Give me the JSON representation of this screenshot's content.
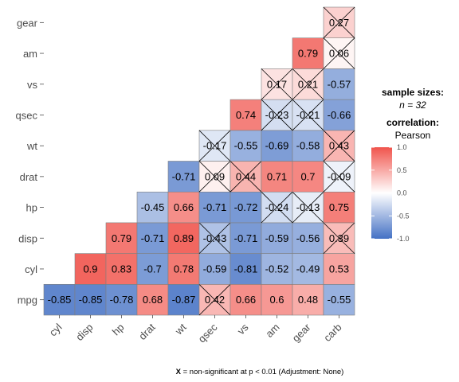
{
  "chart_data": {
    "type": "heatmap",
    "subtype": "correlation-matrix-lower-triangle",
    "variables": [
      "mpg",
      "cyl",
      "disp",
      "hp",
      "drat",
      "wt",
      "qsec",
      "vs",
      "am",
      "gear",
      "carb"
    ],
    "cells": [
      {
        "row": "cyl",
        "col": "mpg",
        "value": -0.85,
        "significant": true
      },
      {
        "row": "disp",
        "col": "mpg",
        "value": -0.85,
        "significant": true
      },
      {
        "row": "hp",
        "col": "mpg",
        "value": -0.78,
        "significant": true
      },
      {
        "row": "drat",
        "col": "mpg",
        "value": 0.68,
        "significant": true
      },
      {
        "row": "wt",
        "col": "mpg",
        "value": -0.87,
        "significant": true
      },
      {
        "row": "qsec",
        "col": "mpg",
        "value": 0.42,
        "significant": false
      },
      {
        "row": "vs",
        "col": "mpg",
        "value": 0.66,
        "significant": true
      },
      {
        "row": "am",
        "col": "mpg",
        "value": 0.6,
        "significant": true
      },
      {
        "row": "gear",
        "col": "mpg",
        "value": 0.48,
        "significant": true
      },
      {
        "row": "carb",
        "col": "mpg",
        "value": -0.55,
        "significant": true
      },
      {
        "row": "disp",
        "col": "cyl",
        "value": 0.9,
        "significant": true
      },
      {
        "row": "hp",
        "col": "cyl",
        "value": 0.83,
        "significant": true
      },
      {
        "row": "drat",
        "col": "cyl",
        "value": -0.7,
        "significant": true
      },
      {
        "row": "wt",
        "col": "cyl",
        "value": 0.78,
        "significant": true
      },
      {
        "row": "qsec",
        "col": "cyl",
        "value": -0.59,
        "significant": true
      },
      {
        "row": "vs",
        "col": "cyl",
        "value": -0.81,
        "significant": true
      },
      {
        "row": "am",
        "col": "cyl",
        "value": -0.52,
        "significant": true
      },
      {
        "row": "gear",
        "col": "cyl",
        "value": -0.49,
        "significant": true
      },
      {
        "row": "carb",
        "col": "cyl",
        "value": 0.53,
        "significant": true
      },
      {
        "row": "hp",
        "col": "disp",
        "value": 0.79,
        "significant": true
      },
      {
        "row": "drat",
        "col": "disp",
        "value": -0.71,
        "significant": true
      },
      {
        "row": "wt",
        "col": "disp",
        "value": 0.89,
        "significant": true
      },
      {
        "row": "qsec",
        "col": "disp",
        "value": -0.43,
        "significant": false
      },
      {
        "row": "vs",
        "col": "disp",
        "value": -0.71,
        "significant": true
      },
      {
        "row": "am",
        "col": "disp",
        "value": -0.59,
        "significant": true
      },
      {
        "row": "gear",
        "col": "disp",
        "value": -0.56,
        "significant": true
      },
      {
        "row": "carb",
        "col": "disp",
        "value": 0.39,
        "significant": false
      },
      {
        "row": "drat",
        "col": "hp",
        "value": -0.45,
        "significant": true
      },
      {
        "row": "wt",
        "col": "hp",
        "value": 0.66,
        "significant": true
      },
      {
        "row": "qsec",
        "col": "hp",
        "value": -0.71,
        "significant": true
      },
      {
        "row": "vs",
        "col": "hp",
        "value": -0.72,
        "significant": true
      },
      {
        "row": "am",
        "col": "hp",
        "value": -0.24,
        "significant": false
      },
      {
        "row": "gear",
        "col": "hp",
        "value": -0.13,
        "significant": false
      },
      {
        "row": "carb",
        "col": "hp",
        "value": 0.75,
        "significant": true
      },
      {
        "row": "wt",
        "col": "drat",
        "value": -0.71,
        "significant": true
      },
      {
        "row": "qsec",
        "col": "drat",
        "value": 0.09,
        "significant": false
      },
      {
        "row": "vs",
        "col": "drat",
        "value": 0.44,
        "significant": false
      },
      {
        "row": "am",
        "col": "drat",
        "value": 0.71,
        "significant": true
      },
      {
        "row": "gear",
        "col": "drat",
        "value": 0.7,
        "significant": true
      },
      {
        "row": "carb",
        "col": "drat",
        "value": -0.09,
        "significant": false
      },
      {
        "row": "qsec",
        "col": "wt",
        "value": -0.17,
        "significant": false
      },
      {
        "row": "vs",
        "col": "wt",
        "value": -0.55,
        "significant": true
      },
      {
        "row": "am",
        "col": "wt",
        "value": -0.69,
        "significant": true
      },
      {
        "row": "gear",
        "col": "wt",
        "value": -0.58,
        "significant": true
      },
      {
        "row": "carb",
        "col": "wt",
        "value": 0.43,
        "significant": false
      },
      {
        "row": "vs",
        "col": "qsec",
        "value": 0.74,
        "significant": true
      },
      {
        "row": "am",
        "col": "qsec",
        "value": -0.23,
        "significant": false
      },
      {
        "row": "gear",
        "col": "qsec",
        "value": -0.21,
        "significant": false
      },
      {
        "row": "carb",
        "col": "qsec",
        "value": -0.66,
        "significant": true
      },
      {
        "row": "am",
        "col": "vs",
        "value": 0.17,
        "significant": false
      },
      {
        "row": "gear",
        "col": "vs",
        "value": 0.21,
        "significant": false
      },
      {
        "row": "carb",
        "col": "vs",
        "value": -0.57,
        "significant": true
      },
      {
        "row": "gear",
        "col": "am",
        "value": 0.79,
        "significant": true
      },
      {
        "row": "carb",
        "col": "am",
        "value": 0.06,
        "significant": false
      },
      {
        "row": "carb",
        "col": "gear",
        "value": 0.27,
        "significant": false
      }
    ],
    "color_scale": {
      "low": "#4471c4",
      "mid": "#ffffff",
      "high": "#f0544c",
      "limits": [
        -1,
        1
      ]
    },
    "legend": {
      "title": "sample sizes:",
      "n_label": "n = 32",
      "corr_title": "correlation:",
      "method": "Pearson",
      "ticks": [
        "1.0",
        "0.5",
        "0.0",
        "-0.5",
        "-1.0"
      ],
      "tick_values": [
        1.0,
        0.5,
        0.0,
        -0.5,
        -1.0
      ],
      "placement": "right"
    },
    "caption": {
      "symbol": "X",
      "text": " = non-significant at p < 0.01 (Adjustment: None)"
    },
    "grid": false
  }
}
